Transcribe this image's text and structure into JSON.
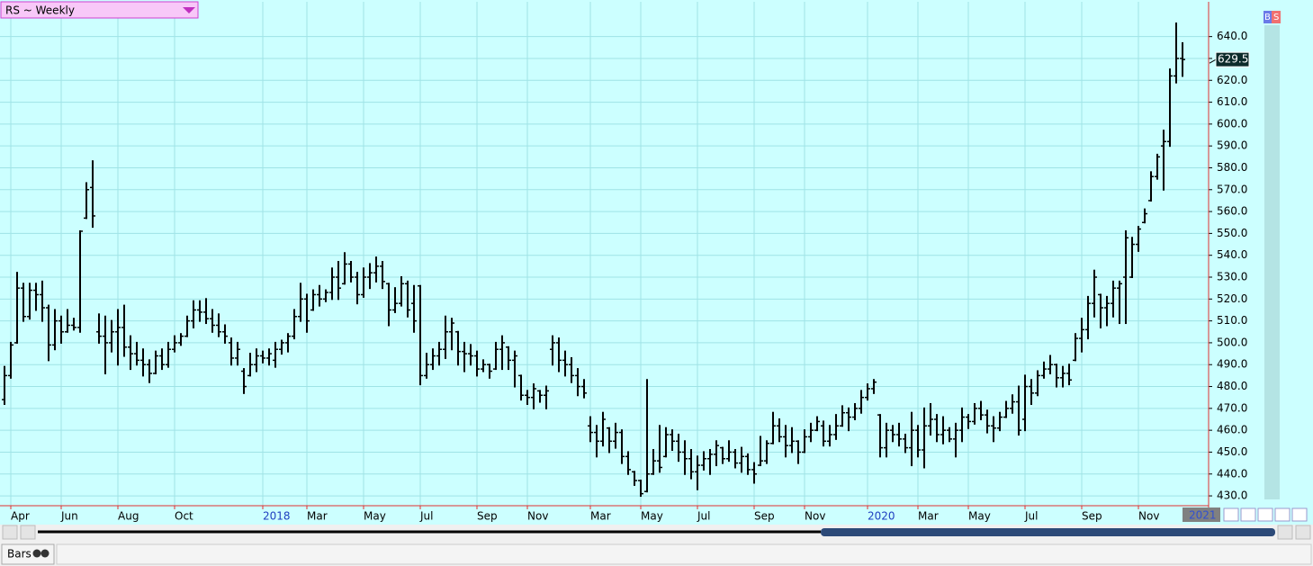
{
  "chart_data": {
    "type": "ohlc",
    "title": "RS ~ Weekly",
    "end_period_label": "2021",
    "footer_tab": "Bars",
    "buttons": [
      "B",
      "S"
    ],
    "categories": [
      null,
      "Apr",
      null,
      null,
      null,
      null,
      null,
      null,
      null,
      "Jun",
      null,
      null,
      null,
      null,
      null,
      null,
      null,
      null,
      "Aug",
      null,
      null,
      null,
      null,
      null,
      null,
      null,
      null,
      "Oct",
      null,
      null,
      null,
      null,
      null,
      null,
      null,
      null,
      null,
      null,
      null,
      null,
      null,
      "2018",
      null,
      null,
      null,
      null,
      null,
      null,
      "Mar",
      null,
      null,
      null,
      null,
      null,
      null,
      null,
      null,
      "May",
      null,
      null,
      null,
      null,
      null,
      null,
      null,
      null,
      "Jul",
      null,
      null,
      null,
      null,
      null,
      null,
      null,
      null,
      "Sep",
      null,
      null,
      null,
      null,
      null,
      null,
      null,
      "Nov",
      null,
      null,
      null,
      null,
      null,
      null,
      null,
      null,
      null,
      "Mar",
      null,
      null,
      null,
      null,
      null,
      null,
      null,
      "May",
      null,
      null,
      null,
      null,
      null,
      null,
      null,
      null,
      "Jul",
      null,
      null,
      null,
      null,
      null,
      null,
      null,
      null,
      "Sep",
      null,
      null,
      null,
      null,
      null,
      null,
      null,
      "Nov",
      null,
      null,
      null,
      null,
      null,
      null,
      null,
      null,
      null,
      "2020",
      null,
      null,
      null,
      null,
      null,
      null,
      null,
      "Mar",
      null,
      null,
      null,
      null,
      null,
      null,
      null,
      "May",
      null,
      null,
      null,
      null,
      null,
      null,
      null,
      null,
      "Jul",
      null,
      null,
      null,
      null,
      null,
      null,
      null,
      null,
      "Sep",
      null,
      null,
      null,
      null,
      null,
      null,
      null,
      null,
      "Nov",
      null,
      null,
      null,
      null,
      null,
      null,
      null
    ],
    "ohlc": [
      [
        474,
        489,
        472,
        485
      ],
      [
        485,
        500,
        484,
        499
      ],
      [
        500,
        532,
        500,
        525
      ],
      [
        525,
        527,
        510,
        512
      ],
      [
        512,
        527,
        511,
        524
      ],
      [
        524,
        527,
        515,
        522
      ],
      [
        522,
        528,
        510,
        516
      ],
      [
        516,
        517,
        492,
        499
      ],
      [
        499,
        515,
        497,
        510
      ],
      [
        510,
        512,
        500,
        505
      ],
      [
        505,
        515,
        505,
        508
      ],
      [
        508,
        511,
        506,
        507
      ],
      [
        507,
        551,
        505,
        551
      ],
      [
        557,
        573,
        557,
        570
      ],
      [
        571,
        583,
        553,
        558
      ],
      [
        505,
        513,
        500,
        503
      ],
      [
        503,
        512,
        486,
        500
      ],
      [
        500,
        510,
        496,
        505
      ],
      [
        505,
        515,
        490,
        507
      ],
      [
        507,
        517,
        494,
        498
      ],
      [
        498,
        503,
        488,
        495
      ],
      [
        495,
        500,
        490,
        492
      ],
      [
        492,
        497,
        485,
        490
      ],
      [
        490,
        492,
        482,
        486
      ],
      [
        486,
        496,
        486,
        494
      ],
      [
        494,
        497,
        488,
        490
      ],
      [
        490,
        500,
        489,
        497
      ],
      [
        497,
        503,
        496,
        500
      ],
      [
        500,
        504,
        499,
        503
      ],
      [
        503,
        512,
        503,
        510
      ],
      [
        510,
        519,
        507,
        515
      ],
      [
        515,
        519,
        510,
        514
      ],
      [
        514,
        520,
        509,
        511
      ],
      [
        511,
        515,
        505,
        508
      ],
      [
        508,
        513,
        503,
        505
      ],
      [
        505,
        508,
        500,
        503
      ],
      [
        500,
        502,
        490,
        493
      ],
      [
        493,
        500,
        490,
        497
      ],
      [
        487,
        488,
        477,
        480
      ],
      [
        485,
        495,
        485,
        490
      ],
      [
        490,
        497,
        487,
        494
      ],
      [
        494,
        496,
        491,
        493
      ],
      [
        493,
        497,
        490,
        495
      ],
      [
        492,
        500,
        489,
        497
      ],
      [
        497,
        501,
        495,
        500
      ],
      [
        500,
        504,
        496,
        503
      ],
      [
        503,
        515,
        502,
        512
      ],
      [
        512,
        527,
        510,
        520
      ],
      [
        520,
        522,
        505,
        510
      ],
      [
        515,
        524,
        515,
        522
      ],
      [
        522,
        526,
        517,
        520
      ],
      [
        520,
        524,
        519,
        523
      ],
      [
        523,
        534,
        520,
        530
      ],
      [
        530,
        537,
        520,
        525
      ],
      [
        527,
        541,
        527,
        536
      ],
      [
        536,
        537,
        528,
        530
      ],
      [
        530,
        532,
        518,
        522
      ],
      [
        522,
        534,
        521,
        530
      ],
      [
        530,
        536,
        525,
        532
      ],
      [
        532,
        539,
        528,
        535
      ],
      [
        535,
        537,
        525,
        528
      ],
      [
        527,
        527,
        508,
        515
      ],
      [
        515,
        525,
        514,
        518
      ],
      [
        518,
        530,
        517,
        527
      ],
      [
        527,
        528,
        512,
        515
      ],
      [
        518,
        526,
        505,
        510
      ],
      [
        526,
        526,
        481,
        485
      ],
      [
        485,
        495,
        484,
        490
      ],
      [
        490,
        497,
        488,
        494
      ],
      [
        494,
        500,
        490,
        497
      ],
      [
        497,
        512,
        493,
        505
      ],
      [
        505,
        511,
        497,
        509
      ],
      [
        505,
        505,
        490,
        496
      ],
      [
        496,
        500,
        487,
        495
      ],
      [
        495,
        499,
        490,
        494
      ],
      [
        494,
        496,
        485,
        488
      ],
      [
        488,
        492,
        487,
        490
      ],
      [
        490,
        490,
        484,
        487
      ],
      [
        488,
        500,
        488,
        497
      ],
      [
        497,
        503,
        488,
        500
      ],
      [
        498,
        498,
        488,
        492
      ],
      [
        492,
        496,
        480,
        494
      ],
      [
        485,
        485,
        474,
        476
      ],
      [
        476,
        478,
        472,
        475
      ],
      [
        475,
        481,
        470,
        479
      ],
      [
        478,
        478,
        473,
        476
      ],
      [
        476,
        480,
        470,
        478
      ],
      [
        497,
        503,
        490,
        500
      ],
      [
        500,
        502,
        487,
        492
      ],
      [
        492,
        496,
        485,
        490
      ],
      [
        490,
        493,
        482,
        485
      ],
      [
        485,
        488,
        476,
        480
      ],
      [
        480,
        483,
        475,
        477
      ],
      [
        462,
        466,
        455,
        459
      ],
      [
        459,
        462,
        448,
        455
      ],
      [
        455,
        468,
        453,
        465
      ],
      [
        461,
        461,
        450,
        455
      ],
      [
        455,
        463,
        452,
        459
      ],
      [
        459,
        460,
        445,
        448
      ],
      [
        448,
        450,
        440,
        442
      ],
      [
        441,
        441,
        435,
        437
      ],
      [
        437,
        437,
        430,
        431
      ],
      [
        432,
        483,
        432,
        440
      ],
      [
        440,
        451,
        440,
        446
      ],
      [
        446,
        462,
        441,
        443
      ],
      [
        448,
        461,
        448,
        458
      ],
      [
        458,
        460,
        451,
        455
      ],
      [
        455,
        458,
        446,
        450
      ],
      [
        450,
        455,
        440,
        447
      ],
      [
        447,
        451,
        438,
        441
      ],
      [
        441,
        448,
        433,
        444
      ],
      [
        444,
        450,
        442,
        447
      ],
      [
        447,
        451,
        440,
        449
      ],
      [
        449,
        455,
        444,
        453
      ],
      [
        452,
        452,
        445,
        447
      ],
      [
        447,
        455,
        446,
        450
      ],
      [
        450,
        451,
        443,
        445
      ],
      [
        445,
        452,
        441,
        448
      ],
      [
        448,
        449,
        440,
        442
      ],
      [
        442,
        445,
        436,
        440
      ],
      [
        444,
        457,
        444,
        446
      ],
      [
        446,
        455,
        445,
        454
      ],
      [
        454,
        468,
        454,
        462
      ],
      [
        462,
        465,
        455,
        457
      ],
      [
        457,
        462,
        448,
        453
      ],
      [
        453,
        461,
        450,
        455
      ],
      [
        455,
        455,
        445,
        450
      ],
      [
        450,
        460,
        450,
        457
      ],
      [
        457,
        463,
        455,
        460
      ],
      [
        460,
        466,
        460,
        464
      ],
      [
        462,
        464,
        453,
        455
      ],
      [
        455,
        462,
        453,
        458
      ],
      [
        458,
        467,
        456,
        462
      ],
      [
        462,
        471,
        462,
        468
      ],
      [
        468,
        470,
        460,
        466
      ],
      [
        466,
        472,
        465,
        470
      ],
      [
        470,
        478,
        468,
        475
      ],
      [
        475,
        481,
        474,
        479
      ],
      [
        479,
        483,
        477,
        482
      ],
      [
        467,
        467,
        448,
        452
      ],
      [
        452,
        463,
        448,
        460
      ],
      [
        460,
        462,
        455,
        458
      ],
      [
        458,
        463,
        453,
        456
      ],
      [
        456,
        458,
        450,
        452
      ],
      [
        452,
        468,
        444,
        460
      ],
      [
        460,
        462,
        448,
        451
      ],
      [
        451,
        470,
        443,
        462
      ],
      [
        462,
        472,
        458,
        465
      ],
      [
        465,
        467,
        455,
        458
      ],
      [
        458,
        466,
        454,
        460
      ],
      [
        460,
        461,
        455,
        456
      ],
      [
        456,
        463,
        448,
        460
      ],
      [
        460,
        470,
        455,
        466
      ],
      [
        466,
        467,
        461,
        464
      ],
      [
        464,
        472,
        463,
        470
      ],
      [
        470,
        473,
        465,
        467
      ],
      [
        467,
        469,
        459,
        462
      ],
      [
        462,
        466,
        455,
        461
      ],
      [
        461,
        468,
        460,
        466
      ],
      [
        466,
        473,
        466,
        470
      ],
      [
        470,
        476,
        468,
        473
      ],
      [
        473,
        480,
        458,
        460
      ],
      [
        465,
        485,
        460,
        480
      ],
      [
        480,
        483,
        472,
        477
      ],
      [
        477,
        487,
        476,
        485
      ],
      [
        485,
        491,
        484,
        488
      ],
      [
        488,
        494,
        486,
        490
      ],
      [
        490,
        490,
        480,
        484
      ],
      [
        484,
        489,
        480,
        486
      ],
      [
        486,
        490,
        481,
        483
      ],
      [
        492,
        504,
        492,
        502
      ],
      [
        502,
        511,
        496,
        506
      ],
      [
        506,
        521,
        502,
        518
      ],
      [
        518,
        533,
        512,
        530
      ],
      [
        522,
        522,
        507,
        516
      ],
      [
        516,
        521,
        508,
        518
      ],
      [
        518,
        528,
        512,
        525
      ],
      [
        525,
        528,
        509,
        527
      ],
      [
        530,
        551,
        509,
        548
      ],
      [
        530,
        548,
        530,
        545
      ],
      [
        545,
        553,
        542,
        552
      ],
      [
        555,
        561,
        555,
        559
      ],
      [
        565,
        578,
        565,
        576
      ],
      [
        576,
        586,
        575,
        585
      ],
      [
        590,
        597,
        570,
        592
      ],
      [
        592,
        625,
        590,
        622
      ],
      [
        622,
        646,
        619,
        630
      ],
      [
        630,
        637,
        622,
        629.5
      ]
    ],
    "ylim": [
      425.5,
      655.9
    ],
    "yticks": [
      {
        "value": 430,
        "label": "430.0"
      },
      {
        "value": 440,
        "label": "440.0"
      },
      {
        "value": 450,
        "label": "450.0"
      },
      {
        "value": 460,
        "label": "460.0"
      },
      {
        "value": 470,
        "label": "470.0"
      },
      {
        "value": 480,
        "label": "480.0"
      },
      {
        "value": 490,
        "label": "490.0"
      },
      {
        "value": 500,
        "label": "500.0"
      },
      {
        "value": 510,
        "label": "510.0"
      },
      {
        "value": 520,
        "label": "520.0"
      },
      {
        "value": 530,
        "label": "530.0"
      },
      {
        "value": 540,
        "label": "540.0"
      },
      {
        "value": 550,
        "label": "550.0"
      },
      {
        "value": 560,
        "label": "560.0"
      },
      {
        "value": 570,
        "label": "570.0"
      },
      {
        "value": 580,
        "label": "580.0"
      },
      {
        "value": 590,
        "label": "590.0"
      },
      {
        "value": 600,
        "label": "600.0"
      },
      {
        "value": 610,
        "label": "610.0"
      },
      {
        "value": 620,
        "label": "620.0"
      },
      {
        "value": 630,
        "label": "630.0"
      },
      {
        "value": 640,
        "label": "640.0"
      }
    ],
    "grid": true,
    "color": "#000000"
  }
}
